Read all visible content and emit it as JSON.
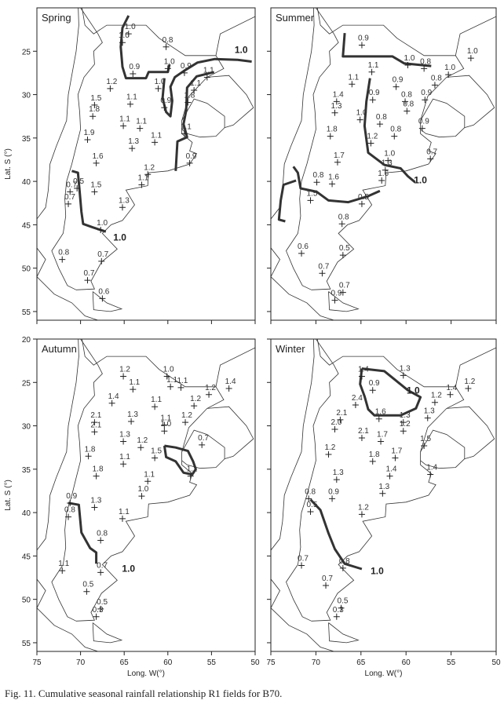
{
  "chart_data": [
    {
      "type": "scatter",
      "title": "Spring",
      "x": [
        64.5,
        65.2,
        60.2,
        64,
        60,
        58.1,
        55.5,
        66.6,
        61.1,
        57,
        68.4,
        64.3,
        60.4,
        57.7,
        68.6,
        65.1,
        63.2,
        58.1,
        69.2,
        64.1,
        61.5,
        57.5,
        68.2,
        62.3,
        63,
        70.4,
        71.2,
        68.4,
        71.4,
        65.2,
        67.7,
        72.1,
        67.6,
        69.2,
        67.5
      ],
      "y": [
        23,
        24,
        24.5,
        27.6,
        27,
        27.5,
        28,
        29.3,
        29.3,
        29.5,
        31.2,
        31.1,
        31.5,
        30.9,
        32.5,
        33.6,
        33.9,
        34.5,
        35.2,
        36.2,
        35.5,
        37.9,
        37.9,
        39.2,
        40.4,
        40.8,
        41.2,
        41.2,
        42.6,
        43,
        45.6,
        49,
        49.2,
        51.4,
        53.5
      ],
      "values": [
        1,
        1,
        0.8,
        0.9,
        1,
        0.9,
        1.1,
        1.2,
        1,
        1.1,
        1.5,
        1.1,
        0.9,
        1.8,
        1.8,
        1.1,
        1.1,
        1.1,
        1.9,
        1.3,
        1.1,
        0.9,
        1.6,
        1.2,
        1.1,
        0.5,
        0.7,
        1.5,
        0.7,
        1.3,
        1,
        0.8,
        0.7,
        0.7,
        0.6
      ],
      "value_labels": [
        "1.0",
        "1.0",
        "0.8",
        "0.9",
        "1.0",
        "0.9",
        "1.1",
        "1.2",
        "1.0",
        "1.1",
        "1.5",
        "1.1",
        "0.9",
        "1.8",
        "1.8",
        "1.1",
        "1.1",
        "1.1",
        "1.9",
        "1.3",
        "1.1",
        "0.9",
        "1.6",
        "1.2",
        "1.1",
        "0.5",
        "0.7",
        "1.5",
        "0.7",
        "1.3",
        "1.0",
        "0.8",
        "0.7",
        "0.7",
        "0.6"
      ],
      "contours": [
        {
          "x": [
            64.5,
            65.2,
            65.4,
            65.2,
            64.8,
            62.5,
            62.2,
            60,
            59.8
          ],
          "y": [
            20.9,
            22.3,
            24.5,
            26.8,
            28.1,
            28.1,
            27.4,
            27.4,
            26.5
          ]
        },
        {
          "x": [
            60.4,
            60.6,
            60.2,
            59.7,
            59.5,
            59.7,
            59.2,
            58.2,
            56.6,
            54.6,
            52,
            50.4
          ],
          "y": [
            28.1,
            30.4,
            32,
            32.5,
            30.7,
            29.1,
            28,
            27.3,
            26.3,
            25.9,
            26,
            26.2
          ]
        },
        {
          "x": [
            54.7,
            56.7,
            57.8,
            57.9,
            58.2,
            57.8,
            58.9,
            59.1
          ],
          "y": [
            27.4,
            27.9,
            29.2,
            31.8,
            33.4,
            34.9,
            35.4,
            38.8
          ]
        },
        {
          "x": [
            71,
            70.3,
            70.1,
            69.9,
            69.7,
            68.6,
            67.1
          ],
          "y": [
            38.8,
            39,
            41.2,
            43.5,
            44.9,
            45.3,
            45.8
          ]
        }
      ],
      "annotations": [
        {
          "text": "1.0",
          "x": 51.6,
          "y": 25.2
        },
        {
          "text": "1.0",
          "x": 65.5,
          "y": 46.8
        }
      ],
      "xlim": [
        75,
        50
      ],
      "ylim": [
        20,
        56
      ],
      "xticks": [
        75,
        70,
        65,
        60,
        55,
        50
      ],
      "yticks": [
        25,
        30,
        35,
        40,
        45,
        50,
        55
      ],
      "xtick_labels": false,
      "ytick_labels": true,
      "ylabel": "Lat. S (°)"
    },
    {
      "type": "scatter",
      "title": "Summer",
      "x": [
        64.9,
        52.8,
        63.8,
        59.8,
        58,
        55.3,
        66,
        61.1,
        56.8,
        67.7,
        63.7,
        60.1,
        57.9,
        67.9,
        59.9,
        65.1,
        62.9,
        58.2,
        68.4,
        63.9,
        61.3,
        57.3,
        67.6,
        62,
        62.3,
        69.9,
        68.2,
        62.7,
        70.6,
        64.9,
        67.1,
        71.6,
        67,
        69.3,
        67,
        67.9
      ],
      "y": [
        24.3,
        25.8,
        27.4,
        26.6,
        27,
        27.7,
        28.8,
        29.1,
        28.9,
        30.8,
        30.6,
        30.8,
        30.6,
        32.1,
        31.9,
        32.9,
        33.4,
        33.9,
        34.8,
        35.6,
        34.8,
        37.4,
        37.8,
        37.6,
        38.7,
        40.1,
        40.3,
        39.9,
        42.2,
        42.6,
        44.9,
        48.3,
        48.5,
        50.6,
        52.8,
        53.7
      ],
      "values": [
        0.9,
        1,
        1.1,
        1,
        0.8,
        1,
        1.1,
        0.9,
        0.8,
        1.4,
        0.9,
        0.8,
        0.9,
        1.3,
        0.8,
        1,
        0.8,
        0.9,
        1.8,
        1.2,
        0.8,
        0.7,
        1.7,
        1,
        1.3,
        0.8,
        1.6,
        1.6,
        1.5,
        0.5,
        0.8,
        0.6,
        0.5,
        0.7,
        0.7,
        0.9
      ],
      "value_labels": [
        "0.9",
        "1.0",
        "1.1",
        "1.0",
        "0.8",
        "1.0",
        "1.1",
        "0.9",
        "0.8",
        "1.4",
        "0.9",
        "0.8",
        "0.9",
        "1.3",
        "0.8",
        "1.0",
        "0.8",
        "0.9",
        "1.8",
        "1.2",
        "0.8",
        "0.7",
        "1.7",
        "1.0",
        "1.3",
        "0.8",
        "1.6",
        "1.6",
        "1.5",
        "0.5",
        "0.8",
        "0.6",
        "0.5",
        "0.7",
        "0.7",
        "0.9"
      ],
      "contours": [
        {
          "x": [
            66.8,
            67,
            61.5,
            60.2,
            57.2
          ],
          "y": [
            22.9,
            25.6,
            25.6,
            26.4,
            26.7
          ]
        },
        {
          "x": [
            64,
            64.4,
            64.6,
            64.2,
            62.4,
            60.6,
            59.8,
            59
          ],
          "y": [
            28.1,
            30.8,
            33.6,
            36.7,
            38.1,
            38.5,
            39.4,
            40.1
          ]
        },
        {
          "x": [
            72.5,
            72,
            71.7,
            69.9,
            68.6,
            66.4,
            64.2,
            62.9
          ],
          "y": [
            38.3,
            39,
            40.8,
            41.2,
            42.2,
            42.4,
            41.7,
            41.1
          ]
        },
        {
          "x": [
            72.2,
            73.6,
            73.9,
            74.1,
            73.4
          ],
          "y": [
            39.9,
            40.4,
            42.2,
            44.4,
            44.6
          ]
        }
      ],
      "annotations": [
        {
          "text": "1.0",
          "x": 58.4,
          "y": 40.2
        }
      ],
      "xlim": [
        75,
        50
      ],
      "ylim": [
        20,
        56
      ],
      "xticks": [
        75,
        70,
        65,
        60,
        55,
        50
      ],
      "yticks": [
        25,
        30,
        35,
        40,
        45,
        50,
        55
      ],
      "xtick_labels": false,
      "ytick_labels": false
    },
    {
      "type": "scatter",
      "title": "Autumn",
      "x": [
        65.1,
        60.1,
        53,
        64,
        59.7,
        58.5,
        55.3,
        66.4,
        61.5,
        57,
        68.4,
        64.2,
        60.4,
        58,
        68.4,
        60.4,
        56.1,
        65.1,
        63.1,
        61.5,
        69.1,
        65.1,
        68.2,
        62.3,
        57.4,
        63,
        71.2,
        68.4,
        71.4,
        65.2,
        67.7,
        72.1,
        67.7,
        69.3,
        67.7,
        68.2
      ],
      "y": [
        24.3,
        24.3,
        25.7,
        25.8,
        25.5,
        25.6,
        26.4,
        27.4,
        27.8,
        27.7,
        29.6,
        29.5,
        29.9,
        29.6,
        30.7,
        30.6,
        32.2,
        31.8,
        32.5,
        33.7,
        33.5,
        34.4,
        35.8,
        36.4,
        35.8,
        38.1,
        38.9,
        39.4,
        40.5,
        40.7,
        43.2,
        46.7,
        46.9,
        49.1,
        51.1,
        52
      ],
      "values": [
        1.2,
        1,
        1.4,
        1.1,
        1.1,
        1.1,
        1.2,
        1.4,
        1.1,
        1.2,
        2.1,
        1.3,
        1.1,
        1.2,
        2.1,
        1,
        0.7,
        1.3,
        1.2,
        1.5,
        1.8,
        1.1,
        1.8,
        1.1,
        1.1,
        1,
        0.9,
        1.3,
        0.8,
        1.1,
        0.8,
        1.1,
        0.7,
        0.5,
        0.5,
        0.3
      ],
      "value_labels": [
        "1.2",
        "1.0",
        "1.4",
        "1.1",
        "1.1",
        "1.1",
        "1.2",
        "1.4",
        "1.1",
        "1.2",
        "2.1",
        "1.3",
        "1.1",
        "1.2",
        "2.1",
        "1.0",
        "0.7",
        "1.3",
        "1.2",
        "1.5",
        "1.8",
        "1.1",
        "1.8",
        "1.1",
        "1.1",
        "1.0",
        "0.9",
        "1.3",
        "0.8",
        "1.1",
        "0.8",
        "1.1",
        "0.7",
        "0.5",
        "0.5",
        "0.3"
      ],
      "contours": [
        {
          "x": [
            71.4,
            70.2,
            69.9,
            68.9,
            68.2,
            68.2
          ],
          "y": [
            38.9,
            39.1,
            42.3,
            44.1,
            44.6,
            45.9
          ]
        },
        {
          "x": [
            60.4,
            60.2,
            59.1,
            58.2,
            57.2,
            56.8,
            57.1,
            57.7,
            59.1,
            60.4
          ],
          "y": [
            32.3,
            33.6,
            34.1,
            35.4,
            35.6,
            35,
            34.1,
            32.9,
            32.5,
            32.3
          ]
        }
      ],
      "annotations": [
        {
          "text": "1.0",
          "x": 64.5,
          "y": 46.8
        }
      ],
      "xlim": [
        75,
        50
      ],
      "ylim": [
        20,
        56
      ],
      "xticks": [
        75,
        70,
        65,
        60,
        55,
        50
      ],
      "yticks": [
        20,
        25,
        30,
        35,
        40,
        45,
        50,
        55
      ],
      "xtick_labels": true,
      "ytick_labels": true,
      "ylabel": "Lat. S (°)",
      "xlabel": "Long. W(°)"
    },
    {
      "type": "scatter",
      "title": "Winter",
      "x": [
        64.9,
        60.3,
        53.1,
        63.7,
        55.1,
        56.8,
        65.6,
        57.6,
        67.3,
        63,
        60.3,
        67.9,
        60.3,
        64.9,
        62.8,
        58,
        68.6,
        63.7,
        61.2,
        57.3,
        67.7,
        61.8,
        62.6,
        70.8,
        68.2,
        70.6,
        64.9,
        71.6,
        67,
        68.9,
        67.2,
        67.7
      ],
      "y": [
        24.3,
        24.2,
        25.7,
        25.9,
        26.4,
        27.3,
        27.6,
        29.1,
        29.3,
        29.2,
        29.6,
        30.4,
        30.6,
        31.4,
        31.8,
        32.3,
        33.3,
        34.1,
        33.7,
        35.6,
        36.2,
        35.8,
        37.8,
        38.4,
        38.4,
        39.9,
        40.2,
        46.1,
        46.4,
        48.4,
        51,
        52
      ],
      "values": [
        1.4,
        1.3,
        1.2,
        0.9,
        1.4,
        1.2,
        2.4,
        1.3,
        2.1,
        1.6,
        1.3,
        2,
        1.2,
        2.1,
        1.7,
        1.5,
        1.2,
        1.8,
        1.7,
        1.4,
        1.3,
        1.4,
        1.3,
        0.8,
        0.9,
        0.5,
        1.2,
        0.7,
        0.8,
        0.7,
        0.5,
        0.3
      ],
      "value_labels": [
        "1.4",
        "1.3",
        "1.2",
        "0.9",
        "1.4",
        "1.2",
        "2.4",
        "1.3",
        "2.1",
        "1.6",
        "1.3",
        "2.0",
        "1.2",
        "2.1",
        "1.7",
        "1.5",
        "1.2",
        "1.8",
        "1.7",
        "1.4",
        "1.3",
        "1.4",
        "1.3",
        "0.8",
        "0.9",
        "0.5",
        "1.2",
        "0.7",
        "0.8",
        "0.7",
        "0.5",
        "0.3"
      ],
      "contours": [
        {
          "x": [
            64.9,
            65.1,
            64.6,
            64.2,
            63.5,
            60.6,
            58.9,
            58.4,
            59.8,
            61.1,
            62.4,
            64.9
          ],
          "y": [
            23.4,
            25.2,
            26.6,
            28.1,
            28.8,
            28.8,
            28,
            26.7,
            25.9,
            24.8,
            23.7,
            23.4
          ]
        },
        {
          "x": [
            70.6,
            69.5,
            68.6,
            67.9,
            66.8,
            64.9
          ],
          "y": [
            38.5,
            39.7,
            42.4,
            44.2,
            45.9,
            46.5
          ]
        }
      ],
      "annotations": [
        {
          "text": "1.0",
          "x": 59.2,
          "y": 26.3
        },
        {
          "text": "1.0",
          "x": 63.2,
          "y": 47.1
        }
      ],
      "xlim": [
        75,
        50
      ],
      "ylim": [
        20,
        56
      ],
      "xticks": [
        75,
        70,
        65,
        60,
        55,
        50
      ],
      "yticks": [
        20,
        25,
        30,
        35,
        40,
        45,
        50,
        55
      ],
      "xtick_labels": true,
      "ytick_labels": false,
      "xlabel": "Long. W(°)"
    }
  ],
  "caption": "Fig. 11. Cumulative seasonal rainfall relationship R1 fields for B70."
}
